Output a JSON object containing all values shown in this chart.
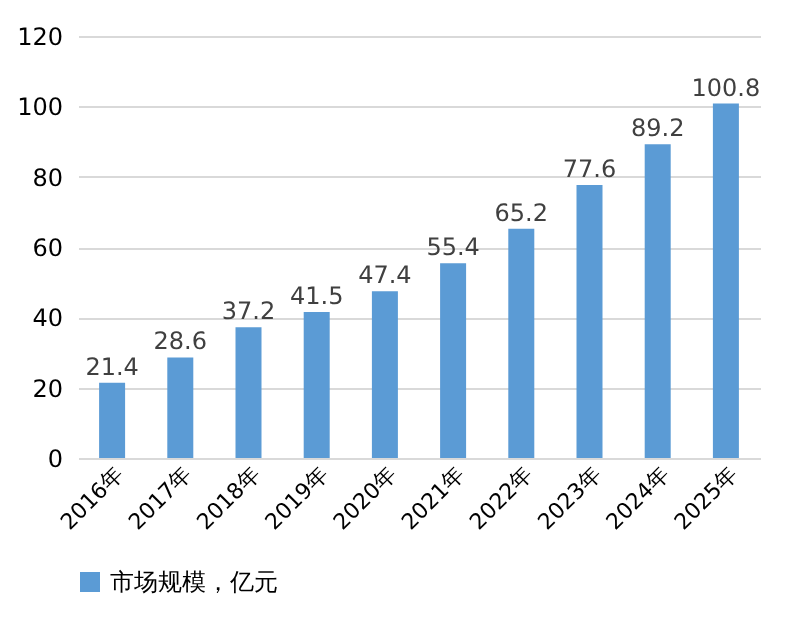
{
  "chart_data": {
    "type": "bar",
    "categories": [
      "2016年",
      "2017年",
      "2018年",
      "2019年",
      "2020年",
      "2021年",
      "2022年",
      "2023年",
      "2024年",
      "2025年"
    ],
    "series": [
      {
        "name": "市场规模，亿元",
        "color": "#5b9bd5",
        "values": [
          21.4,
          28.6,
          37.2,
          41.5,
          47.4,
          55.4,
          65.2,
          77.6,
          89.2,
          100.8
        ]
      }
    ],
    "ylim": [
      0,
      120
    ],
    "yticks": [
      0,
      20,
      40,
      60,
      80,
      100,
      120
    ],
    "grid": "y",
    "data_labels": true,
    "legend": "bottom"
  }
}
